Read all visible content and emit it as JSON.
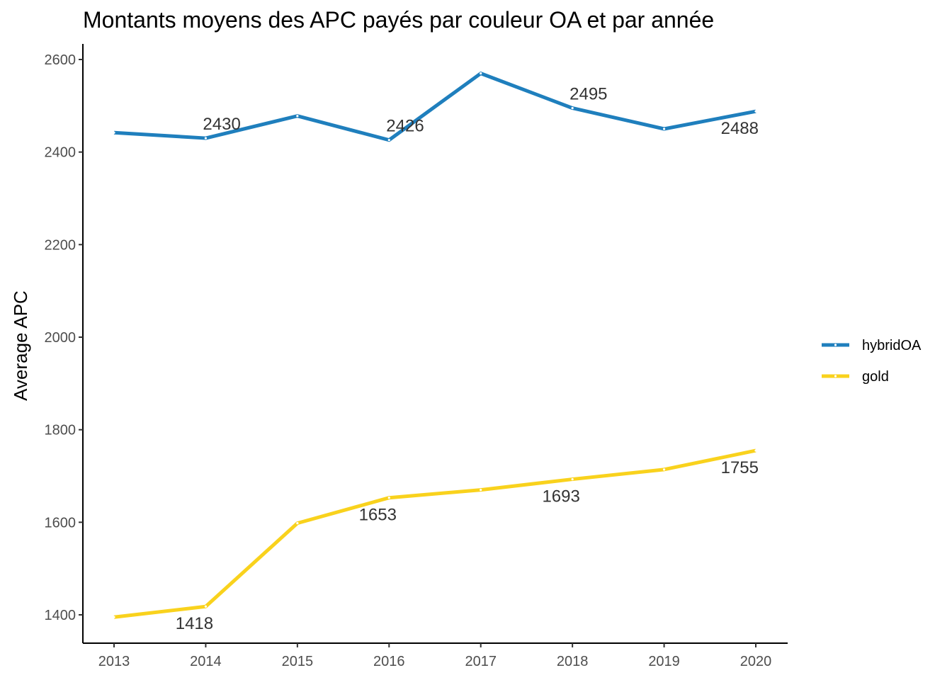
{
  "chart_data": {
    "type": "line",
    "title": "Montants moyens des APC payés par couleur OA et par année",
    "xlabel": "",
    "ylabel": "Average APC",
    "x": [
      "2013",
      "2014",
      "2015",
      "2016",
      "2017",
      "2018",
      "2019",
      "2020"
    ],
    "ylim": [
      1335,
      2615
    ],
    "yticks": [
      1400,
      1600,
      1800,
      2000,
      2200,
      2400,
      2600
    ],
    "grid": false,
    "legend_position": "right",
    "series": [
      {
        "name": "hybridOA",
        "color": "#1f7fbd",
        "values": [
          2442,
          2430,
          2478,
          2426,
          2570,
          2495,
          2450,
          2488
        ],
        "labels": [
          {
            "index": 1,
            "text": "2430",
            "pos": "above"
          },
          {
            "index": 3,
            "text": "2426",
            "pos": "above"
          },
          {
            "index": 5,
            "text": "2495",
            "pos": "above"
          },
          {
            "index": 7,
            "text": "2488",
            "pos": "below"
          }
        ]
      },
      {
        "name": "gold",
        "color": "#f9d21d",
        "values": [
          1395,
          1418,
          1598,
          1653,
          1670,
          1693,
          1714,
          1755
        ],
        "labels": [
          {
            "index": 1,
            "text": "1418",
            "pos": "below"
          },
          {
            "index": 3,
            "text": "1653",
            "pos": "below"
          },
          {
            "index": 5,
            "text": "1693",
            "pos": "below"
          },
          {
            "index": 7,
            "text": "1755",
            "pos": "below"
          }
        ]
      }
    ]
  }
}
